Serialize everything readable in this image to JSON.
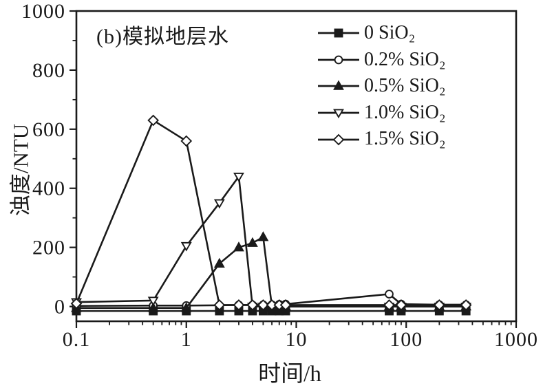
{
  "chart_data": {
    "type": "line",
    "title": "(b)模拟地层水",
    "xlabel": "时间/h",
    "ylabel": "浊度/NTU",
    "x_scale": "log",
    "xlim": [
      0.1,
      1000
    ],
    "ylim": [
      -50,
      1000
    ],
    "grid": false,
    "legend_position": "top-right",
    "ink_color": "#1a1a1a",
    "background_color": "#ffffff",
    "xticks": [
      0.1,
      1,
      10,
      100,
      1000
    ],
    "xtick_labels": [
      "0.1",
      "1",
      "10",
      "100",
      "1000"
    ],
    "x_minor_multiples": [
      2,
      3,
      4,
      5,
      6,
      7,
      8,
      9
    ],
    "yticks": [
      0,
      200,
      400,
      600,
      800,
      1000
    ],
    "ytick_labels": [
      "0",
      "200",
      "400",
      "600",
      "800",
      "1000"
    ],
    "y_minor_ticks": [
      100,
      300,
      500,
      700,
      900
    ],
    "series": [
      {
        "name": "0 SiO₂",
        "marker": "square",
        "fill": "filled",
        "points": [
          [
            0.1,
            -15
          ],
          [
            0.5,
            -15
          ],
          [
            1,
            -15
          ],
          [
            2,
            -15
          ],
          [
            3,
            -15
          ],
          [
            4,
            -15
          ],
          [
            5,
            -15
          ],
          [
            6,
            -15
          ],
          [
            7,
            -15
          ],
          [
            8,
            -15
          ],
          [
            70,
            -15
          ],
          [
            90,
            -15
          ],
          [
            200,
            -15
          ],
          [
            350,
            -15
          ]
        ]
      },
      {
        "name": "0.2% SiO₂",
        "marker": "circle",
        "fill": "open",
        "points": [
          [
            0.1,
            2
          ],
          [
            0.5,
            3
          ],
          [
            1,
            3
          ],
          [
            2,
            4
          ],
          [
            3,
            5
          ],
          [
            4,
            5
          ],
          [
            5,
            6
          ],
          [
            6,
            6
          ],
          [
            7,
            7
          ],
          [
            8,
            8
          ],
          [
            70,
            42
          ],
          [
            90,
            8
          ],
          [
            200,
            6
          ],
          [
            350,
            6
          ]
        ]
      },
      {
        "name": "0.5% SiO₂",
        "marker": "triangle-up",
        "fill": "filled",
        "points": [
          [
            0.1,
            -5
          ],
          [
            0.5,
            -5
          ],
          [
            1,
            -5
          ],
          [
            2,
            145
          ],
          [
            3,
            200
          ],
          [
            4,
            215
          ],
          [
            5,
            235
          ],
          [
            6,
            0
          ],
          [
            7,
            0
          ],
          [
            8,
            0
          ],
          [
            70,
            0
          ],
          [
            90,
            0
          ],
          [
            200,
            0
          ],
          [
            350,
            0
          ]
        ]
      },
      {
        "name": "1.0% SiO₂",
        "marker": "triangle-down",
        "fill": "open",
        "points": [
          [
            0.1,
            15
          ],
          [
            0.5,
            20
          ],
          [
            1,
            205
          ],
          [
            2,
            350
          ],
          [
            3,
            440
          ],
          [
            4,
            0
          ],
          [
            5,
            0
          ],
          [
            6,
            0
          ],
          [
            7,
            0
          ],
          [
            8,
            0
          ],
          [
            70,
            0
          ],
          [
            90,
            0
          ],
          [
            200,
            0
          ],
          [
            350,
            0
          ]
        ]
      },
      {
        "name": "1.5% SiO₂",
        "marker": "diamond",
        "fill": "open",
        "points": [
          [
            0.1,
            10
          ],
          [
            0.5,
            630
          ],
          [
            1,
            560
          ],
          [
            2,
            5
          ],
          [
            3,
            5
          ],
          [
            4,
            5
          ],
          [
            5,
            5
          ],
          [
            6,
            5
          ],
          [
            7,
            5
          ],
          [
            8,
            5
          ],
          [
            70,
            5
          ],
          [
            90,
            5
          ],
          [
            200,
            5
          ],
          [
            350,
            5
          ]
        ]
      }
    ]
  }
}
